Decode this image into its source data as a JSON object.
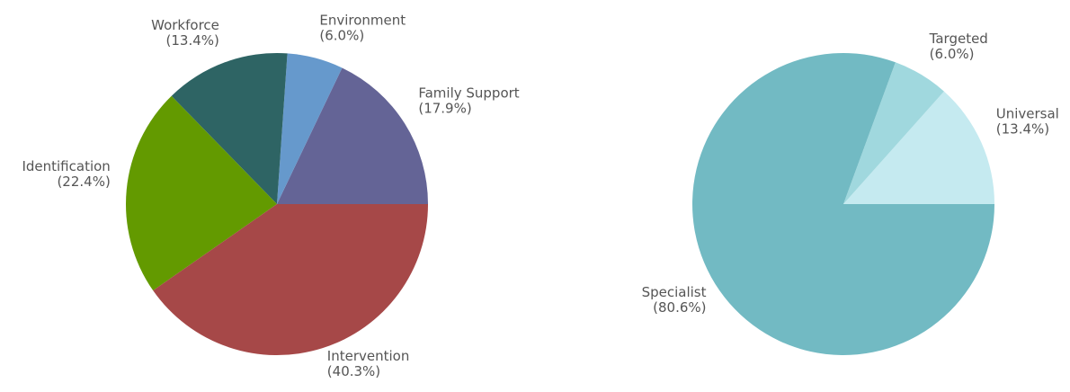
{
  "chart_data": [
    {
      "type": "pie",
      "categories": [
        "Family Support",
        "Environment",
        "Workforce",
        "Identification",
        "Intervention"
      ],
      "values": [
        17.9,
        6.0,
        13.4,
        22.4,
        40.3
      ],
      "value_labels": [
        "(17.9%)",
        "(6.0%)",
        "(13.4%)",
        "(22.4%)",
        "(40.3%)"
      ],
      "colors": [
        "#646496",
        "#6699cc",
        "#2e6464",
        "#639a00",
        "#a64848"
      ]
    },
    {
      "type": "pie",
      "categories": [
        "Universal",
        "Targeted",
        "Specialist"
      ],
      "values": [
        13.4,
        6.0,
        80.6
      ],
      "value_labels": [
        "(13.4%)",
        "(6.0%)",
        "(80.6%)"
      ],
      "colors": [
        "#c5eaf0",
        "#a0d8de",
        "#72bac3"
      ]
    }
  ]
}
